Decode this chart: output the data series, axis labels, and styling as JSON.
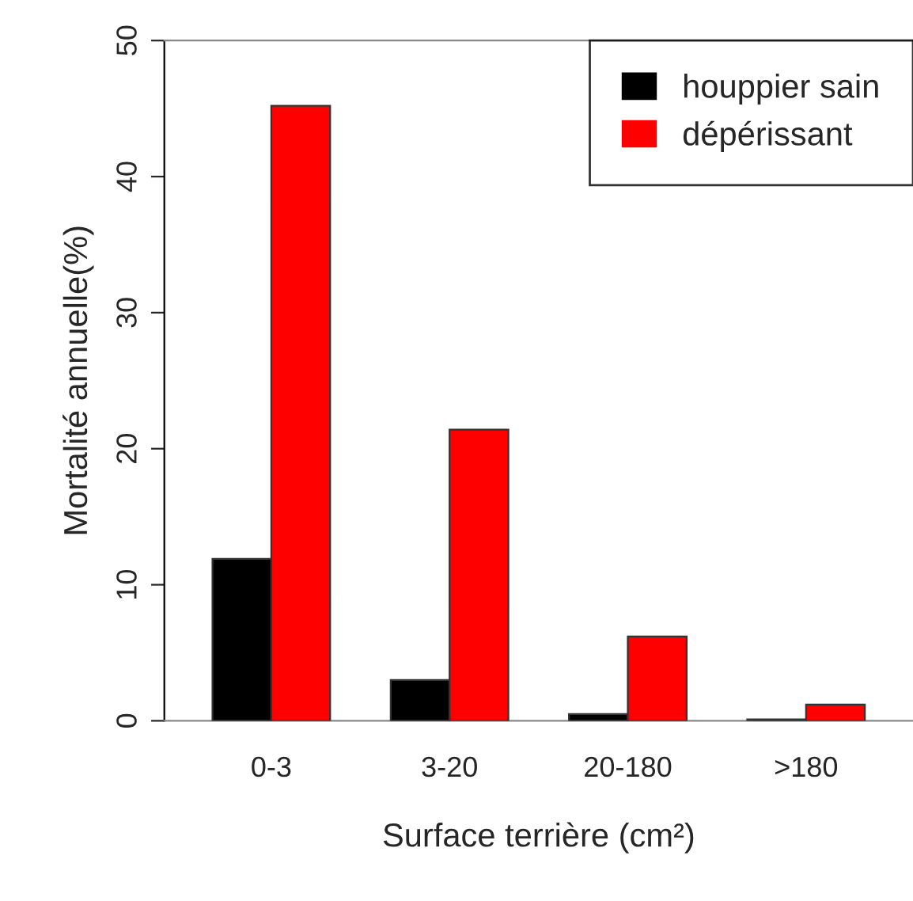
{
  "chart_data": {
    "type": "bar",
    "xlabel": "Surface terrière (cm²)",
    "ylabel": "Mortalité annuelle(%)",
    "categories": [
      "0-3",
      "3-20",
      "20-180",
      ">180"
    ],
    "series": [
      {
        "name": "houppier sain",
        "color": "#000000",
        "values": [
          11.9,
          3.0,
          0.5,
          0.1
        ]
      },
      {
        "name": "dépérissant",
        "color": "#ff0000",
        "values": [
          45.2,
          21.4,
          6.2,
          1.2
        ]
      }
    ],
    "ylim": [
      0,
      50
    ],
    "yticks": [
      0,
      10,
      20,
      30,
      40,
      50
    ],
    "grid": false,
    "legend": "top right"
  }
}
